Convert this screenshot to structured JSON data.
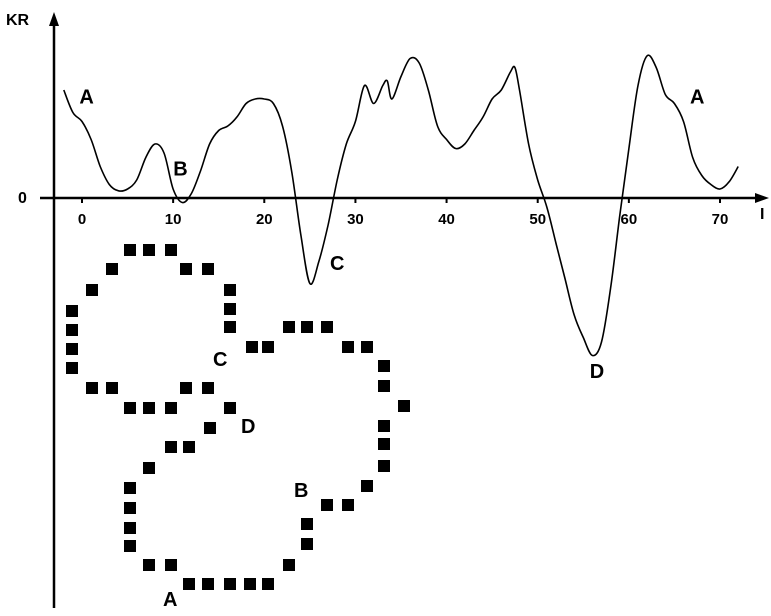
{
  "chart_data": {
    "type": "line",
    "title": "",
    "ylabel": "KR",
    "xlabel": "I",
    "y_zero_label": "0",
    "xlim": [
      -2,
      74
    ],
    "ylim": [
      -1.8,
      1.6
    ],
    "x_ticks": [
      0,
      10,
      20,
      30,
      40,
      50,
      60,
      70
    ],
    "x_tick_labels": [
      "0",
      "10",
      "20",
      "30",
      "40",
      "50",
      "60",
      "70"
    ],
    "grid": false,
    "series": [
      {
        "x": [
          -2,
          -1,
          0,
          1,
          2,
          3,
          4,
          5,
          6,
          7,
          8,
          9,
          10,
          11,
          12,
          13,
          14,
          15,
          16,
          17,
          18,
          19,
          20,
          21,
          22,
          23,
          24,
          25,
          26,
          27,
          28,
          29,
          30,
          31,
          32,
          33,
          33.5,
          34,
          35,
          36,
          37,
          38,
          39,
          40,
          41,
          42,
          43,
          44,
          45,
          46,
          47,
          47.5,
          48,
          49,
          50,
          51,
          52,
          53,
          54,
          55,
          56,
          57,
          58,
          59,
          60,
          61,
          62,
          63,
          64,
          65,
          66,
          67,
          68,
          69,
          70,
          71,
          72
        ],
        "y": [
          1.2,
          0.95,
          0.85,
          0.65,
          0.35,
          0.15,
          0.08,
          0.1,
          0.2,
          0.45,
          0.6,
          0.5,
          0.1,
          -0.05,
          0.05,
          0.3,
          0.6,
          0.75,
          0.8,
          0.9,
          1.05,
          1.1,
          1.1,
          1.05,
          0.8,
          0.3,
          -0.4,
          -0.95,
          -0.7,
          -0.3,
          0.2,
          0.6,
          0.85,
          1.25,
          1.05,
          1.25,
          1.3,
          1.1,
          1.35,
          1.55,
          1.5,
          1.2,
          0.8,
          0.65,
          0.55,
          0.6,
          0.75,
          0.9,
          1.1,
          1.2,
          1.4,
          1.45,
          1.2,
          0.6,
          0.2,
          -0.1,
          -0.5,
          -0.9,
          -1.3,
          -1.55,
          -1.75,
          -1.6,
          -1.0,
          -0.2,
          0.55,
          1.25,
          1.58,
          1.45,
          1.15,
          1.05,
          0.85,
          0.45,
          0.25,
          0.15,
          0.1,
          0.18,
          0.35
        ]
      }
    ],
    "peak_labels": [
      {
        "label": "A",
        "x": 0.5,
        "y": 1.05
      },
      {
        "label": "B",
        "x": 10.8,
        "y": 0.25
      },
      {
        "label": "C",
        "x": 28.0,
        "y": -0.8
      },
      {
        "label": "D",
        "x": 56.5,
        "y": -2.0
      },
      {
        "label": "A",
        "x": 67.5,
        "y": 1.05
      }
    ]
  },
  "structure_diagram": {
    "labels": [
      "C",
      "D",
      "B",
      "A"
    ]
  }
}
